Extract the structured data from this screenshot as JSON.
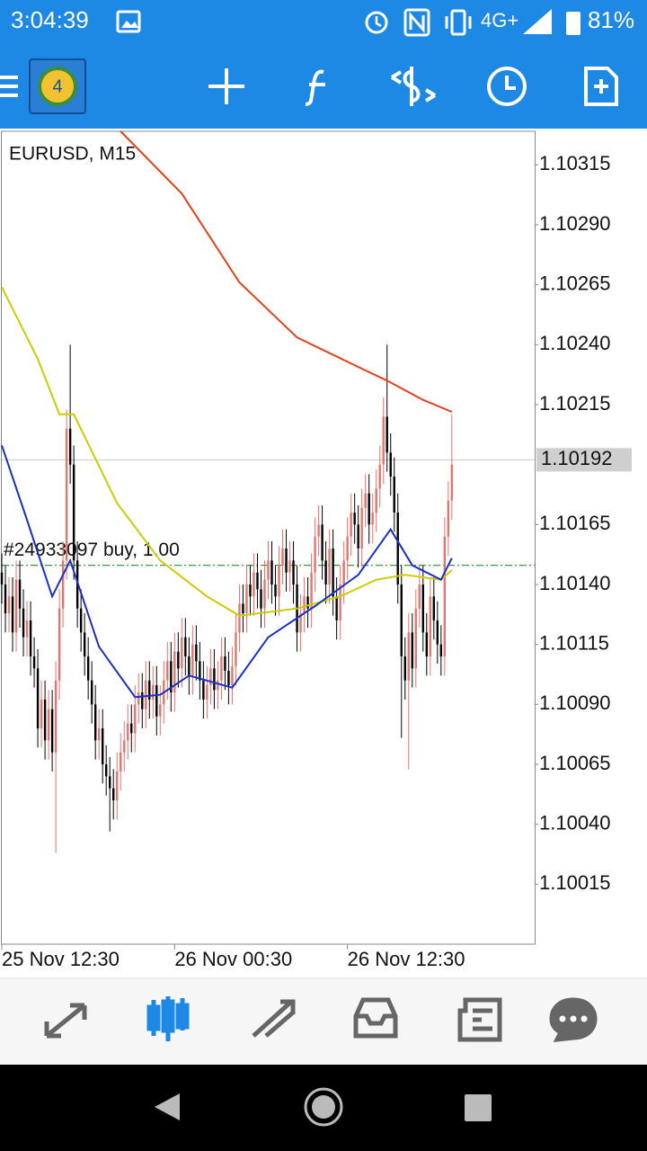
{
  "status_bar": {
    "time": "3:04:39",
    "network": "4G+",
    "battery": "81%"
  },
  "chart_data": {
    "type": "candlestick",
    "title": "EURUSD, M15",
    "up_color": "#e8736c",
    "down_color": "#000000",
    "xlim": [
      0,
      148
    ],
    "xticks": [
      {
        "value": 0,
        "label": "25 Nov 12:30"
      },
      {
        "value": 48,
        "label": "26 Nov 00:30"
      },
      {
        "value": 96,
        "label": "26 Nov 12:30"
      }
    ],
    "ylim": [
      1.0999,
      1.10329
    ],
    "yticks": [
      1.10315,
      {
        "value": 1.1029,
        "label": "1.10290"
      },
      1.10265,
      {
        "value": 1.1024,
        "label": "1.10240"
      },
      1.10215,
      1.10165,
      {
        "value": 1.1014,
        "label": "1.10140"
      },
      1.10115,
      {
        "value": 1.1009,
        "label": "1.10090"
      },
      1.10065,
      {
        "value": 1.1004,
        "label": "1.10040"
      },
      1.10015
    ],
    "current_price": 1.10192,
    "order": {
      "label": "#24933097 buy, 1.00",
      "price": 1.10148,
      "color": "#2e8b2e"
    },
    "ohlc": [
      [
        1.10145,
        1.10153,
        1.10132,
        1.1014
      ],
      [
        1.1014,
        1.10148,
        1.1012,
        1.10128
      ],
      [
        1.10128,
        1.10143,
        1.1012,
        1.10135
      ],
      [
        1.10135,
        1.10143,
        1.10112,
        1.1012
      ],
      [
        1.1012,
        1.1015,
        1.10112,
        1.10142
      ],
      [
        1.10142,
        1.1015,
        1.10122,
        1.1013
      ],
      [
        1.1013,
        1.10138,
        1.1011,
        1.10118
      ],
      [
        1.10118,
        1.10133,
        1.1011,
        1.10125
      ],
      [
        1.10125,
        1.10133,
        1.10102,
        1.1011
      ],
      [
        1.1011,
        1.10118,
        1.10097,
        1.10105
      ],
      [
        1.10105,
        1.10113,
        1.10072,
        1.1008
      ],
      [
        1.1008,
        1.101,
        1.10072,
        1.10092
      ],
      [
        1.10092,
        1.101,
        1.10067,
        1.10075
      ],
      [
        1.10075,
        1.10096,
        1.10067,
        1.10088
      ],
      [
        1.10088,
        1.10096,
        1.10062,
        1.1007
      ],
      [
        1.1007,
        1.10108,
        1.10028,
        1.101
      ],
      [
        1.101,
        1.10138,
        1.10092,
        1.1013
      ],
      [
        1.1013,
        1.10158,
        1.10122,
        1.1015
      ],
      [
        1.1015,
        1.10213,
        1.10142,
        1.10205
      ],
      [
        1.10205,
        1.1024,
        1.10182,
        1.1019
      ],
      [
        1.1019,
        1.10198,
        1.10142,
        1.1015
      ],
      [
        1.1015,
        1.10158,
        1.10122,
        1.1013
      ],
      [
        1.1013,
        1.10138,
        1.10112,
        1.1012
      ],
      [
        1.1012,
        1.10128,
        1.10102,
        1.1011
      ],
      [
        1.1011,
        1.10118,
        1.10092,
        1.101
      ],
      [
        1.101,
        1.10108,
        1.10082,
        1.1009
      ],
      [
        1.1009,
        1.10098,
        1.10067,
        1.10075
      ],
      [
        1.10075,
        1.10088,
        1.10067,
        1.1008
      ],
      [
        1.1008,
        1.10088,
        1.10057,
        1.10065
      ],
      [
        1.10065,
        1.10073,
        1.10052,
        1.1006
      ],
      [
        1.1006,
        1.10068,
        1.10037,
        1.10055
      ],
      [
        1.10055,
        1.10063,
        1.10042,
        1.1005
      ],
      [
        1.1005,
        1.1007,
        1.10042,
        1.10062
      ],
      [
        1.10062,
        1.10078,
        1.10054,
        1.1007
      ],
      [
        1.1007,
        1.10083,
        1.10062,
        1.10075
      ],
      [
        1.10075,
        1.1009,
        1.10067,
        1.10082
      ],
      [
        1.10082,
        1.1009,
        1.1007,
        1.10078
      ],
      [
        1.10078,
        1.10098,
        1.1007,
        1.1009
      ],
      [
        1.1009,
        1.10103,
        1.10082,
        1.10095
      ],
      [
        1.10095,
        1.10103,
        1.1008,
        1.10088
      ],
      [
        1.10088,
        1.10108,
        1.1008,
        1.101
      ],
      [
        1.101,
        1.10108,
        1.10084,
        1.10092
      ],
      [
        1.10092,
        1.10106,
        1.10084,
        1.10098
      ],
      [
        1.10098,
        1.10106,
        1.10077,
        1.10085
      ],
      [
        1.10085,
        1.10098,
        1.10077,
        1.1009
      ],
      [
        1.1009,
        1.10108,
        1.10082,
        1.101
      ],
      [
        1.101,
        1.10116,
        1.10092,
        1.10108
      ],
      [
        1.10108,
        1.10116,
        1.10087,
        1.10095
      ],
      [
        1.10095,
        1.1012,
        1.10087,
        1.10112
      ],
      [
        1.10112,
        1.1012,
        1.10097,
        1.10105
      ],
      [
        1.10105,
        1.10126,
        1.10097,
        1.10118
      ],
      [
        1.10118,
        1.10126,
        1.10102,
        1.1011
      ],
      [
        1.1011,
        1.10118,
        1.10094,
        1.10102
      ],
      [
        1.10102,
        1.10123,
        1.10094,
        1.10115
      ],
      [
        1.10115,
        1.10123,
        1.101,
        1.10108
      ],
      [
        1.10108,
        1.10116,
        1.10092,
        1.101
      ],
      [
        1.101,
        1.10108,
        1.10084,
        1.10092
      ],
      [
        1.10092,
        1.10106,
        1.10084,
        1.10098
      ],
      [
        1.10098,
        1.10113,
        1.1009,
        1.10105
      ],
      [
        1.10105,
        1.10113,
        1.10088,
        1.10096
      ],
      [
        1.10096,
        1.10108,
        1.10088,
        1.101
      ],
      [
        1.101,
        1.10118,
        1.10092,
        1.1011
      ],
      [
        1.1011,
        1.10118,
        1.10096,
        1.10104
      ],
      [
        1.10104,
        1.10112,
        1.1009,
        1.10098
      ],
      [
        1.10098,
        1.10114,
        1.1009,
        1.10106
      ],
      [
        1.10106,
        1.10128,
        1.10098,
        1.1012
      ],
      [
        1.1012,
        1.1014,
        1.10112,
        1.10132
      ],
      [
        1.10132,
        1.1014,
        1.1012,
        1.10128
      ],
      [
        1.10128,
        1.10148,
        1.1012,
        1.1014
      ],
      [
        1.1014,
        1.10148,
        1.10127,
        1.10135
      ],
      [
        1.10135,
        1.10153,
        1.10127,
        1.10145
      ],
      [
        1.10145,
        1.10153,
        1.1013,
        1.10138
      ],
      [
        1.10138,
        1.10146,
        1.10122,
        1.1013
      ],
      [
        1.1013,
        1.1015,
        1.10122,
        1.10142
      ],
      [
        1.10142,
        1.10158,
        1.10134,
        1.1015
      ],
      [
        1.1015,
        1.10158,
        1.10132,
        1.1014
      ],
      [
        1.1014,
        1.10148,
        1.10127,
        1.10135
      ],
      [
        1.10135,
        1.10156,
        1.10127,
        1.10148
      ],
      [
        1.10148,
        1.10163,
        1.1014,
        1.10155
      ],
      [
        1.10155,
        1.10163,
        1.10137,
        1.10145
      ],
      [
        1.10145,
        1.10158,
        1.10137,
        1.1015
      ],
      [
        1.1015,
        1.10158,
        1.10132,
        1.1014
      ],
      [
        1.1014,
        1.10148,
        1.10112,
        1.1012
      ],
      [
        1.1012,
        1.10136,
        1.10112,
        1.10128
      ],
      [
        1.10128,
        1.10143,
        1.1012,
        1.10135
      ],
      [
        1.10135,
        1.10143,
        1.10122,
        1.1013
      ],
      [
        1.1013,
        1.10153,
        1.10122,
        1.10145
      ],
      [
        1.10145,
        1.10168,
        1.10137,
        1.1016
      ],
      [
        1.1016,
        1.10173,
        1.10152,
        1.10165
      ],
      [
        1.10165,
        1.10173,
        1.10142,
        1.1015
      ],
      [
        1.1015,
        1.10158,
        1.10132,
        1.1014
      ],
      [
        1.1014,
        1.10163,
        1.10132,
        1.10155
      ],
      [
        1.10155,
        1.10163,
        1.10127,
        1.10135
      ],
      [
        1.10135,
        1.10143,
        1.10117,
        1.10125
      ],
      [
        1.10125,
        1.10148,
        1.10117,
        1.1014
      ],
      [
        1.1014,
        1.10158,
        1.10132,
        1.1015
      ],
      [
        1.1015,
        1.10168,
        1.10142,
        1.1016
      ],
      [
        1.1016,
        1.10178,
        1.10152,
        1.1017
      ],
      [
        1.1017,
        1.10178,
        1.10157,
        1.10165
      ],
      [
        1.10165,
        1.10173,
        1.10147,
        1.10155
      ],
      [
        1.10155,
        1.1018,
        1.10147,
        1.10172
      ],
      [
        1.10172,
        1.10186,
        1.10164,
        1.10178
      ],
      [
        1.10178,
        1.10186,
        1.10157,
        1.10165
      ],
      [
        1.10165,
        1.10178,
        1.10157,
        1.1017
      ],
      [
        1.1017,
        1.10188,
        1.10162,
        1.1018
      ],
      [
        1.1018,
        1.10198,
        1.10172,
        1.1019
      ],
      [
        1.1019,
        1.10218,
        1.10182,
        1.1021
      ],
      [
        1.1021,
        1.1024,
        1.10187,
        1.10195
      ],
      [
        1.10195,
        1.10203,
        1.10177,
        1.10185
      ],
      [
        1.10185,
        1.10193,
        1.10162,
        1.1017
      ],
      [
        1.1017,
        1.10178,
        1.10132,
        1.1014
      ],
      [
        1.1014,
        1.10148,
        1.10076,
        1.1011
      ],
      [
        1.1011,
        1.10118,
        1.10092,
        1.101
      ],
      [
        1.101,
        1.10128,
        1.10063,
        1.1012
      ],
      [
        1.1012,
        1.10128,
        1.10097,
        1.10105
      ],
      [
        1.10105,
        1.10138,
        1.10097,
        1.1013
      ],
      [
        1.1013,
        1.10148,
        1.10122,
        1.1014
      ],
      [
        1.1014,
        1.10148,
        1.10112,
        1.1012
      ],
      [
        1.1012,
        1.10128,
        1.10102,
        1.1011
      ],
      [
        1.1011,
        1.10143,
        1.10102,
        1.10135
      ],
      [
        1.10135,
        1.10143,
        1.10117,
        1.10125
      ],
      [
        1.10125,
        1.10133,
        1.10107,
        1.10115
      ],
      [
        1.10115,
        1.10123,
        1.10102,
        1.1011
      ],
      [
        1.1011,
        1.10168,
        1.10102,
        1.1016
      ],
      [
        1.1016,
        1.10183,
        1.10152,
        1.10175
      ],
      [
        1.10175,
        1.10211,
        1.10167,
        1.1019
      ]
    ],
    "lines": [
      {
        "color": "#e8401c",
        "x": [
          33,
          50,
          66,
          82,
          100,
          107,
          117,
          125
        ],
        "values": [
          1.10329,
          1.10303,
          1.10266,
          1.10243,
          1.1023,
          1.10225,
          1.10217,
          1.10212
        ]
      },
      {
        "color": "#cccc00",
        "x": [
          0,
          10,
          16,
          20,
          32,
          44,
          57,
          66,
          82,
          94,
          104,
          112,
          122,
          125
        ],
        "values": [
          1.10264,
          1.10234,
          1.10211,
          1.10211,
          1.10174,
          1.1015,
          1.10135,
          1.10127,
          1.1013,
          1.10135,
          1.10142,
          1.10144,
          1.10142,
          1.10146
        ]
      },
      {
        "color": "#1a2fc8",
        "x": [
          0,
          7,
          14,
          19,
          27,
          37,
          44,
          52,
          64,
          74,
          87,
          99,
          108,
          114,
          122,
          125
        ],
        "values": [
          1.10198,
          1.10167,
          1.10135,
          1.1015,
          1.10114,
          1.10093,
          1.10094,
          1.10102,
          1.10097,
          1.10118,
          1.10131,
          1.10144,
          1.10163,
          1.10148,
          1.10142,
          1.10151
        ]
      }
    ]
  }
}
